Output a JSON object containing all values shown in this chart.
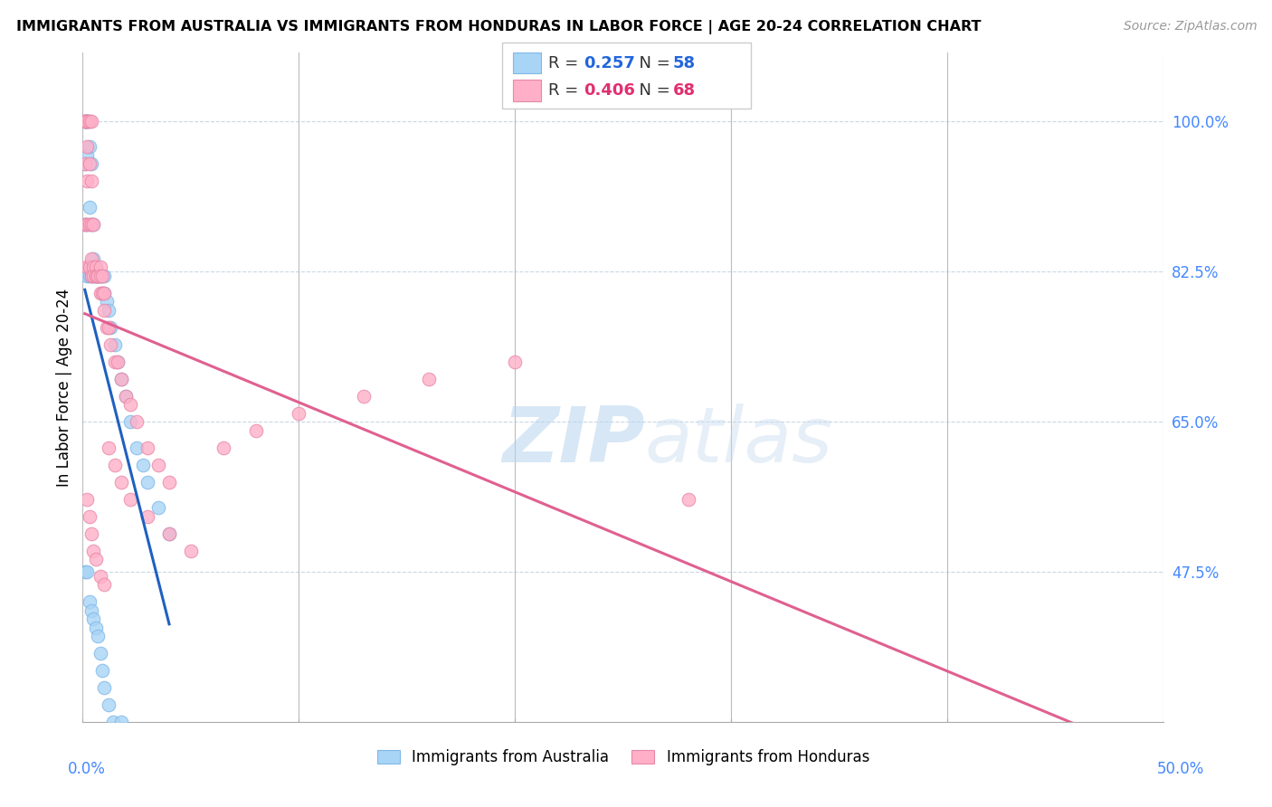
{
  "title": "IMMIGRANTS FROM AUSTRALIA VS IMMIGRANTS FROM HONDURAS IN LABOR FORCE | AGE 20-24 CORRELATION CHART",
  "source": "Source: ZipAtlas.com",
  "ylabel": "In Labor Force | Age 20-24",
  "ytick_vals": [
    0.475,
    0.65,
    0.825,
    1.0
  ],
  "ytick_labels": [
    "47.5%",
    "65.0%",
    "82.5%",
    "100.0%"
  ],
  "xlim": [
    0.0,
    0.5
  ],
  "ylim": [
    0.3,
    1.08
  ],
  "color_blue": "#A8D4F5",
  "color_pink": "#FFB0C8",
  "line_blue": "#2060C0",
  "line_pink": "#E06090",
  "watermark": "ZIPatlas",
  "watermark_color": "#D0E8FF",
  "legend_blue_r": "0.257",
  "legend_blue_n": "58",
  "legend_pink_r": "0.406",
  "legend_pink_n": "68",
  "aus_x": [
    0.001,
    0.001,
    0.001,
    0.001,
    0.002,
    0.002,
    0.002,
    0.002,
    0.002,
    0.002,
    0.003,
    0.003,
    0.003,
    0.003,
    0.003,
    0.004,
    0.004,
    0.004,
    0.004,
    0.005,
    0.005,
    0.005,
    0.006,
    0.006,
    0.007,
    0.007,
    0.008,
    0.008,
    0.009,
    0.009,
    0.01,
    0.01,
    0.011,
    0.012,
    0.013,
    0.015,
    0.016,
    0.018,
    0.02,
    0.022,
    0.025,
    0.028,
    0.03,
    0.035,
    0.04,
    0.001,
    0.002,
    0.003,
    0.004,
    0.005,
    0.006,
    0.007,
    0.008,
    0.009,
    0.01,
    0.012,
    0.014,
    0.018
  ],
  "aus_y": [
    1.0,
    1.0,
    0.95,
    0.88,
    1.0,
    1.0,
    1.0,
    0.96,
    0.88,
    0.82,
    1.0,
    0.97,
    0.9,
    0.83,
    0.82,
    0.95,
    0.88,
    0.83,
    0.82,
    0.88,
    0.84,
    0.82,
    0.83,
    0.82,
    0.82,
    0.82,
    0.82,
    0.82,
    0.82,
    0.8,
    0.82,
    0.8,
    0.79,
    0.78,
    0.76,
    0.74,
    0.72,
    0.7,
    0.68,
    0.65,
    0.62,
    0.6,
    0.58,
    0.55,
    0.52,
    0.475,
    0.475,
    0.44,
    0.43,
    0.42,
    0.41,
    0.4,
    0.38,
    0.36,
    0.34,
    0.32,
    0.3,
    0.3
  ],
  "hon_x": [
    0.001,
    0.001,
    0.001,
    0.001,
    0.001,
    0.002,
    0.002,
    0.002,
    0.002,
    0.002,
    0.002,
    0.003,
    0.003,
    0.003,
    0.003,
    0.004,
    0.004,
    0.004,
    0.004,
    0.004,
    0.005,
    0.005,
    0.005,
    0.006,
    0.006,
    0.006,
    0.007,
    0.007,
    0.008,
    0.008,
    0.008,
    0.009,
    0.009,
    0.01,
    0.01,
    0.011,
    0.012,
    0.013,
    0.015,
    0.016,
    0.018,
    0.02,
    0.022,
    0.025,
    0.03,
    0.035,
    0.04,
    0.002,
    0.003,
    0.004,
    0.005,
    0.006,
    0.008,
    0.01,
    0.012,
    0.015,
    0.018,
    0.022,
    0.03,
    0.04,
    0.05,
    0.065,
    0.08,
    0.1,
    0.13,
    0.16,
    0.2,
    0.28
  ],
  "hon_y": [
    1.0,
    1.0,
    1.0,
    0.95,
    0.88,
    1.0,
    1.0,
    0.97,
    0.93,
    0.88,
    0.83,
    1.0,
    0.95,
    0.88,
    0.83,
    1.0,
    0.93,
    0.88,
    0.84,
    0.82,
    0.88,
    0.83,
    0.82,
    0.83,
    0.82,
    0.82,
    0.82,
    0.82,
    0.83,
    0.82,
    0.8,
    0.82,
    0.8,
    0.8,
    0.78,
    0.76,
    0.76,
    0.74,
    0.72,
    0.72,
    0.7,
    0.68,
    0.67,
    0.65,
    0.62,
    0.6,
    0.58,
    0.56,
    0.54,
    0.52,
    0.5,
    0.49,
    0.47,
    0.46,
    0.62,
    0.6,
    0.58,
    0.56,
    0.54,
    0.52,
    0.5,
    0.62,
    0.64,
    0.66,
    0.68,
    0.7,
    0.72,
    0.56
  ]
}
